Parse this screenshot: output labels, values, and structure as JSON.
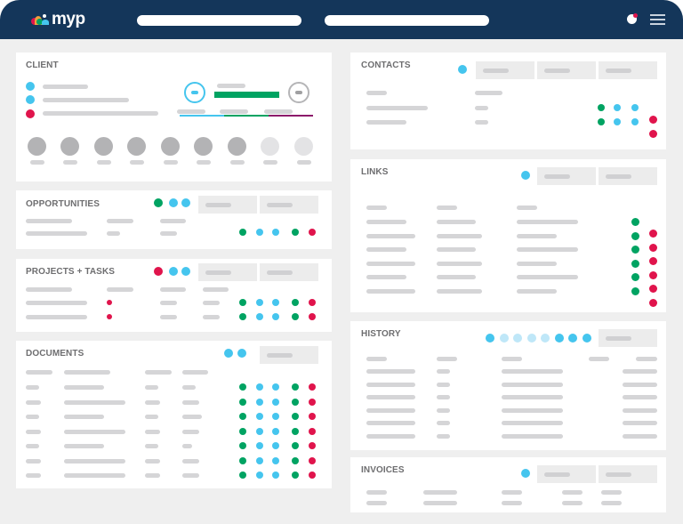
{
  "app": {
    "logo_text": "myp",
    "logo_colors": [
      "#e0144c",
      "#00a362",
      "#45c5ee",
      "#f0a03c"
    ],
    "header_bg": "#14365a",
    "search_bars": 2,
    "notification_icon": "notification-bell-icon",
    "menu_icon": "hamburger-menu-icon"
  },
  "colors": {
    "green": "#00a362",
    "blue": "#45c5ee",
    "light_blue": "#bfe7f8",
    "red": "#e0144c",
    "purple": "#8c1a6a",
    "placeholder": "#d5d5d7",
    "background": "#efefef"
  },
  "client": {
    "title": "CLIENT",
    "fields": [
      {
        "status": "blue"
      },
      {
        "status": "blue"
      },
      {
        "status": "red"
      }
    ],
    "progress": {
      "start_node": "blue",
      "end_node": "gray",
      "bar_color": "#00a362",
      "segments": [
        "#45c5ee",
        "#00a362",
        "#8c1a6a"
      ]
    },
    "team_avatars": [
      {
        "state": "active"
      },
      {
        "state": "active"
      },
      {
        "state": "active"
      },
      {
        "state": "active"
      },
      {
        "state": "active"
      },
      {
        "state": "active"
      },
      {
        "state": "active"
      },
      {
        "state": "inactive"
      },
      {
        "state": "inactive"
      }
    ]
  },
  "opportunities": {
    "title": "OPPORTUNITIES",
    "header_dots": [
      "green",
      "blue",
      "blue"
    ],
    "buttons": 2,
    "rows": [
      {
        "status_dots": []
      },
      {
        "status_dots": [
          "green",
          "blue",
          "blue",
          "green",
          "red"
        ]
      }
    ]
  },
  "projects_tasks": {
    "title": "PROJECTS + TASKS",
    "header_dots": [
      "red",
      "blue",
      "blue"
    ],
    "buttons": 2,
    "rows": [
      {
        "flag": "red",
        "status_dots": [
          "green",
          "blue",
          "blue",
          "green",
          "red"
        ]
      },
      {
        "flag": "red",
        "status_dots": [
          "green",
          "blue",
          "blue",
          "green",
          "red"
        ]
      }
    ]
  },
  "documents": {
    "title": "DOCUMENTS",
    "header_dots": [
      "blue",
      "blue"
    ],
    "buttons": 1,
    "row_count": 7,
    "row_status_dots": [
      "green",
      "blue",
      "blue",
      "green",
      "red"
    ]
  },
  "contacts": {
    "title": "CONTACTS",
    "header_dots": [
      "blue"
    ],
    "buttons": 3,
    "rows": [
      {
        "status_dots": [
          "green",
          "blue",
          "blue"
        ]
      },
      {
        "status_dots": [
          "green",
          "blue",
          "blue",
          "red"
        ]
      }
    ],
    "extra_dot": "red"
  },
  "links": {
    "title": "LINKS",
    "header_dots": [
      "blue"
    ],
    "buttons": 2,
    "row_count": 6,
    "green_dots": 6,
    "red_dots": 6
  },
  "history": {
    "title": "HISTORY",
    "pagination_dots": [
      "blue",
      "light_blue",
      "light_blue",
      "light_blue",
      "light_blue",
      "blue",
      "blue",
      "blue"
    ],
    "buttons": 1,
    "row_count": 6
  },
  "invoices": {
    "title": "INVOICES",
    "header_dots": [
      "blue"
    ],
    "buttons": 2,
    "row_count": 2
  }
}
